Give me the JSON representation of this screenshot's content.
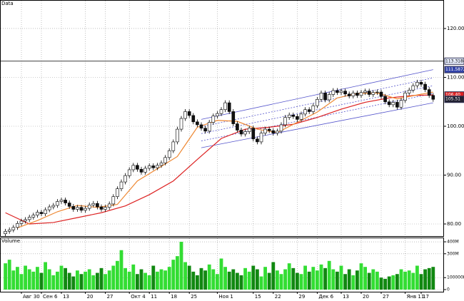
{
  "chart_data": {
    "type": "candlestick",
    "title": "Data",
    "volume_title": "Volume",
    "categories": [
      null,
      null,
      null,
      null,
      "Авг 30",
      null,
      null,
      null,
      null,
      "Сен 6",
      null,
      null,
      null,
      null,
      "13",
      null,
      null,
      null,
      null,
      null,
      "20",
      null,
      null,
      null,
      null,
      "27",
      null,
      null,
      null,
      null,
      null,
      "Окт 4",
      null,
      null,
      null,
      null,
      "11",
      null,
      null,
      null,
      null,
      "18",
      null,
      null,
      null,
      null,
      "25",
      null,
      null,
      null,
      null,
      null,
      null,
      "Ноя 1",
      null,
      null,
      null,
      null,
      null,
      null,
      null,
      null,
      "15",
      null,
      null,
      null,
      null,
      "22",
      null,
      null,
      null,
      null,
      null,
      "29",
      null,
      null,
      null,
      null,
      "Дек 6",
      null,
      null,
      null,
      null,
      null,
      "13",
      null,
      null,
      null,
      null,
      "20",
      null,
      null,
      null,
      null,
      "27",
      null,
      null,
      null,
      null,
      null,
      "Янв 11",
      null,
      null,
      null,
      "17",
      null,
      null,
      null
    ],
    "open": [
      78.0,
      78.5,
      78.8,
      79.3,
      80.1,
      80.6,
      80.9,
      81.4,
      81.8,
      82.4,
      82.1,
      82.9,
      83.5,
      83.8,
      84.6,
      84.9,
      84.3,
      83.6,
      83.0,
      83.4,
      82.8,
      83.2,
      83.9,
      84.2,
      83.5,
      83.0,
      83.4,
      84.1,
      85.6,
      87.2,
      88.6,
      89.9,
      91.1,
      92.0,
      91.2,
      90.6,
      91.4,
      91.9,
      91.5,
      92.0,
      92.5,
      93.6,
      95.0,
      96.8,
      99.4,
      101.6,
      103.0,
      102.2,
      100.9,
      100.3,
      99.6,
      99.0,
      100.8,
      102.1,
      102.6,
      103.4,
      104.8,
      103.0,
      100.5,
      99.2,
      98.4,
      98.9,
      99.6,
      97.4,
      96.8,
      98.6,
      99.4,
      99.1,
      98.6,
      99.0,
      100.3,
      101.8,
      102.3,
      102.0,
      101.4,
      102.5,
      103.4,
      103.0,
      104.2,
      105.5,
      106.8,
      105.4,
      106.5,
      107.3,
      106.9,
      107.2,
      106.6,
      106.2,
      106.8,
      106.3,
      106.9,
      107.2,
      106.5,
      106.9,
      107.0,
      106.1,
      105.0,
      104.4,
      104.9,
      103.9,
      105.3,
      106.8,
      107.4,
      108.3,
      109.0,
      108.6,
      107.5,
      106.3
    ],
    "high": [
      79.0,
      79.3,
      79.8,
      80.6,
      81.1,
      81.4,
      81.9,
      82.3,
      82.9,
      82.9,
      83.4,
      84.0,
      84.3,
      85.1,
      85.4,
      85.4,
      84.8,
      84.1,
      83.9,
      83.9,
      83.7,
      84.4,
      84.7,
      84.7,
      84.0,
      83.9,
      84.6,
      86.1,
      87.7,
      89.1,
      90.4,
      91.6,
      92.5,
      92.5,
      91.7,
      91.9,
      92.4,
      92.4,
      92.5,
      93.0,
      94.1,
      95.5,
      97.3,
      99.9,
      102.1,
      103.5,
      103.5,
      102.7,
      101.4,
      100.8,
      100.1,
      101.3,
      102.6,
      103.1,
      103.9,
      105.3,
      105.3,
      103.5,
      101.0,
      99.7,
      99.4,
      100.1,
      100.1,
      97.9,
      99.1,
      99.9,
      99.9,
      99.6,
      99.5,
      100.8,
      102.3,
      102.8,
      102.8,
      102.5,
      103.0,
      103.9,
      103.9,
      104.7,
      106.0,
      107.3,
      107.3,
      107.0,
      107.8,
      107.8,
      107.7,
      107.7,
      107.1,
      107.3,
      107.3,
      107.4,
      107.7,
      107.7,
      107.4,
      107.5,
      107.5,
      106.6,
      105.5,
      105.4,
      105.4,
      105.8,
      107.3,
      107.9,
      108.8,
      109.5,
      109.5,
      109.1,
      108.0,
      106.8
    ],
    "low": [
      77.5,
      78.0,
      78.3,
      78.8,
      79.6,
      80.1,
      80.4,
      80.9,
      81.3,
      81.6,
      81.6,
      82.4,
      83.0,
      83.3,
      84.1,
      83.8,
      83.1,
      82.5,
      82.5,
      82.3,
      82.3,
      82.7,
      83.4,
      83.0,
      82.5,
      82.5,
      82.9,
      83.6,
      85.1,
      86.7,
      88.1,
      89.4,
      90.6,
      90.7,
      90.1,
      90.1,
      90.9,
      91.0,
      91.0,
      91.5,
      92.0,
      93.1,
      94.5,
      96.3,
      98.9,
      101.1,
      101.7,
      100.4,
      99.8,
      99.1,
      98.5,
      98.5,
      100.3,
      101.6,
      102.1,
      102.9,
      102.5,
      100.0,
      98.7,
      97.9,
      97.9,
      98.4,
      96.9,
      96.3,
      96.3,
      98.1,
      98.6,
      98.1,
      98.1,
      98.5,
      99.8,
      101.3,
      101.5,
      100.9,
      100.9,
      102.0,
      102.5,
      102.5,
      103.7,
      105.0,
      104.9,
      104.9,
      106.0,
      106.4,
      106.4,
      106.1,
      105.7,
      105.7,
      105.8,
      105.8,
      106.4,
      106.0,
      106.0,
      106.4,
      105.6,
      104.5,
      103.9,
      103.9,
      103.4,
      103.4,
      104.8,
      106.3,
      106.9,
      107.8,
      108.1,
      107.0,
      105.8,
      105.01
    ],
    "close": [
      78.5,
      78.8,
      79.3,
      80.1,
      80.6,
      80.9,
      81.4,
      81.8,
      82.4,
      82.1,
      82.9,
      83.5,
      83.8,
      84.6,
      84.9,
      84.3,
      83.6,
      83.0,
      83.4,
      82.8,
      83.2,
      83.9,
      84.2,
      83.5,
      83.0,
      83.4,
      84.1,
      85.6,
      87.2,
      88.6,
      89.9,
      91.1,
      92.0,
      91.2,
      90.6,
      91.4,
      91.9,
      91.5,
      92.0,
      92.5,
      93.6,
      95.0,
      96.8,
      99.4,
      101.6,
      103.0,
      102.2,
      100.9,
      100.3,
      99.6,
      99.0,
      100.8,
      102.1,
      102.6,
      103.4,
      104.8,
      103.0,
      100.5,
      99.2,
      98.4,
      98.9,
      99.6,
      97.4,
      96.8,
      98.6,
      99.4,
      99.1,
      98.6,
      99.0,
      100.3,
      101.8,
      102.3,
      102.0,
      101.4,
      102.5,
      103.4,
      103.0,
      104.2,
      105.5,
      106.8,
      105.4,
      106.5,
      107.3,
      106.9,
      107.2,
      106.6,
      106.2,
      106.8,
      106.3,
      106.9,
      107.2,
      106.5,
      106.9,
      107.0,
      106.1,
      105.0,
      104.4,
      104.9,
      103.9,
      105.3,
      106.8,
      107.4,
      108.3,
      109.0,
      108.6,
      107.5,
      106.3,
      105.51
    ],
    "volume": [
      220,
      250,
      160,
      190,
      130,
      200,
      170,
      150,
      190,
      140,
      230,
      170,
      120,
      150,
      200,
      180,
      140,
      110,
      160,
      130,
      150,
      170,
      120,
      140,
      180,
      130,
      160,
      200,
      240,
      330,
      180,
      150,
      210,
      130,
      170,
      140,
      120,
      200,
      150,
      170,
      160,
      190,
      250,
      280,
      400,
      230,
      200,
      150,
      120,
      180,
      160,
      210,
      170,
      130,
      260,
      190,
      150,
      170,
      140,
      120,
      180,
      150,
      200,
      170,
      110,
      190,
      140,
      230,
      160,
      130,
      170,
      220,
      180,
      140,
      130,
      200,
      150,
      190,
      160,
      210,
      180,
      240,
      170,
      150,
      200,
      130,
      170,
      120,
      160,
      220,
      190,
      140,
      170,
      150,
      100,
      90,
      110,
      120,
      130,
      170,
      150,
      160,
      140,
      200,
      130,
      170,
      180,
      190
    ],
    "up_color": "#ffffff",
    "down_color": "#111111",
    "volume_up_color": "#33dd33",
    "volume_down_color": "#118811",
    "series": [
      {
        "color": "#dd2222",
        "value_label": "106.40",
        "x": [
          0,
          6,
          12,
          18,
          24,
          30,
          36,
          42,
          48,
          54,
          60,
          66,
          72,
          78,
          84,
          90,
          96,
          102,
          107
        ],
        "values": [
          82.3,
          80.0,
          80.3,
          81.3,
          82.3,
          83.7,
          86.0,
          88.8,
          93.2,
          97.5,
          99.4,
          99.8,
          100.4,
          101.8,
          103.5,
          104.9,
          105.8,
          106.3,
          106.4
        ]
      },
      {
        "color": "#ee8833",
        "x": [
          3,
          8,
          13,
          18,
          23,
          28,
          33,
          38,
          43,
          48,
          53,
          58,
          63,
          68,
          73,
          78,
          83,
          88,
          93,
          98,
          103,
          107
        ],
        "values": [
          79.2,
          80.7,
          82.5,
          83.8,
          83.4,
          84.0,
          88.8,
          91.3,
          93.8,
          99.8,
          101.2,
          101.0,
          99.4,
          98.7,
          100.8,
          102.9,
          105.8,
          106.7,
          106.8,
          105.6,
          106.4,
          107.0
        ]
      }
    ],
    "trend_lines": [
      {
        "start_x": 49,
        "end_x": 107,
        "start_value": 101.4,
        "end_value": 111.5872,
        "dashed": false
      },
      {
        "start_x": 49,
        "end_x": 107,
        "start_value": 99.9,
        "end_value": 109.9,
        "dashed": true
      },
      {
        "start_x": 49,
        "end_x": 107,
        "start_value": 98.5,
        "end_value": 108.3,
        "dashed": true
      },
      {
        "start_x": 49,
        "end_x": 107,
        "start_value": 97.0,
        "end_value": 106.7,
        "dashed": true
      },
      {
        "start_x": 49,
        "end_x": 107,
        "start_value": 95.6,
        "end_value": 104.8,
        "dashed": false
      }
    ],
    "trend_color": "#5555cc",
    "horizontal_line": 113.3188,
    "ylim": [
      77.52,
      125.69
    ],
    "yticks": [
      {
        "value": 80,
        "label": "80.00"
      },
      {
        "value": 90,
        "label": "90.00"
      },
      {
        "value": 100,
        "label": "100.00"
      },
      {
        "value": 110,
        "label": "110.00"
      },
      {
        "value": 120,
        "label": "120.00"
      }
    ],
    "volume_ylim": [
      -12,
      430
    ],
    "volume_yticks": [
      {
        "value": 0,
        "label": "0"
      },
      {
        "value": 100,
        "label": "100000K"
      },
      {
        "value": 300,
        "label": "300M"
      },
      {
        "value": 400,
        "label": "400M"
      }
    ],
    "grid": true
  }
}
